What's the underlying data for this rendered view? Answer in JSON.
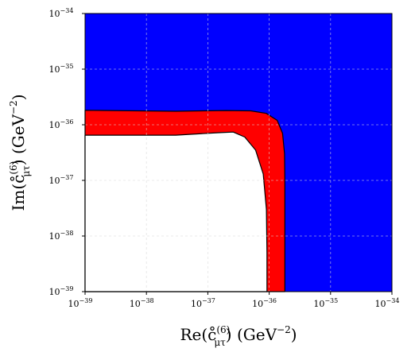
{
  "chart_data": {
    "type": "area",
    "title": "",
    "xlabel": {
      "pre": "Re(",
      "sym": "c̊",
      "sup": "(6)",
      "sub": "μτ",
      "post": ") (GeV",
      "unit_sup": "−2",
      "close": ")"
    },
    "ylabel": {
      "pre": "Im(",
      "sym": "c̊",
      "sup": "(6)",
      "sub": "μτ",
      "post": ") (GeV",
      "unit_sup": "−2",
      "close": ")"
    },
    "x_scale": "log",
    "y_scale": "log",
    "xlim": [
      1e-39,
      1e-34
    ],
    "ylim": [
      1e-39,
      1e-34
    ],
    "grid": true,
    "x_ticks": [
      {
        "base": "10",
        "exp": "−39",
        "value": 1e-39
      },
      {
        "base": "10",
        "exp": "−38",
        "value": 1e-38
      },
      {
        "base": "10",
        "exp": "−37",
        "value": 1e-37
      },
      {
        "base": "10",
        "exp": "−36",
        "value": 1e-36
      },
      {
        "base": "10",
        "exp": "−35",
        "value": 1e-35
      },
      {
        "base": "10",
        "exp": "−34",
        "value": 1e-34
      }
    ],
    "y_ticks": [
      {
        "base": "10",
        "exp": "−39",
        "value": 1e-39
      },
      {
        "base": "10",
        "exp": "−38",
        "value": 1e-38
      },
      {
        "base": "10",
        "exp": "−37",
        "value": 1e-37
      },
      {
        "base": "10",
        "exp": "−36",
        "value": 1e-36
      },
      {
        "base": "10",
        "exp": "−35",
        "value": 1e-35
      },
      {
        "base": "10",
        "exp": "−34",
        "value": 1e-34
      }
    ],
    "regions": [
      {
        "color": "#0000ff",
        "fill_to": "plot-area"
      },
      {
        "color": "#ff0000",
        "outer_boundary": [
          [
            1e-39,
            1.82e-36
          ],
          [
            3e-38,
            1.75e-36
          ],
          [
            2e-37,
            1.8e-36
          ],
          [
            5e-37,
            1.78e-36
          ],
          [
            9e-37,
            1.6e-36
          ],
          [
            1.35e-36,
            1.2e-36
          ],
          [
            1.65e-36,
            7e-37
          ],
          [
            1.78e-36,
            3e-37
          ],
          [
            1.8e-36,
            1e-37
          ],
          [
            1.8e-36,
            1e-39
          ]
        ]
      },
      {
        "color": "#ffffff",
        "outer_boundary": [
          [
            1e-39,
            6.5e-37
          ],
          [
            3e-38,
            6.5e-37
          ],
          [
            1.5e-37,
            7.2e-37
          ],
          [
            2.6e-37,
            7.4e-37
          ],
          [
            4e-37,
            6e-37
          ],
          [
            6e-37,
            3.5e-37
          ],
          [
            8e-37,
            1.3e-37
          ],
          [
            9e-37,
            3e-38
          ],
          [
            9.2e-37,
            5e-39
          ],
          [
            9.2e-37,
            1e-39
          ]
        ]
      }
    ],
    "colors": {
      "allowed": "#ffffff",
      "band": "#ff0000",
      "excluded": "#0000ff",
      "grid": "#d9d9d9"
    }
  }
}
